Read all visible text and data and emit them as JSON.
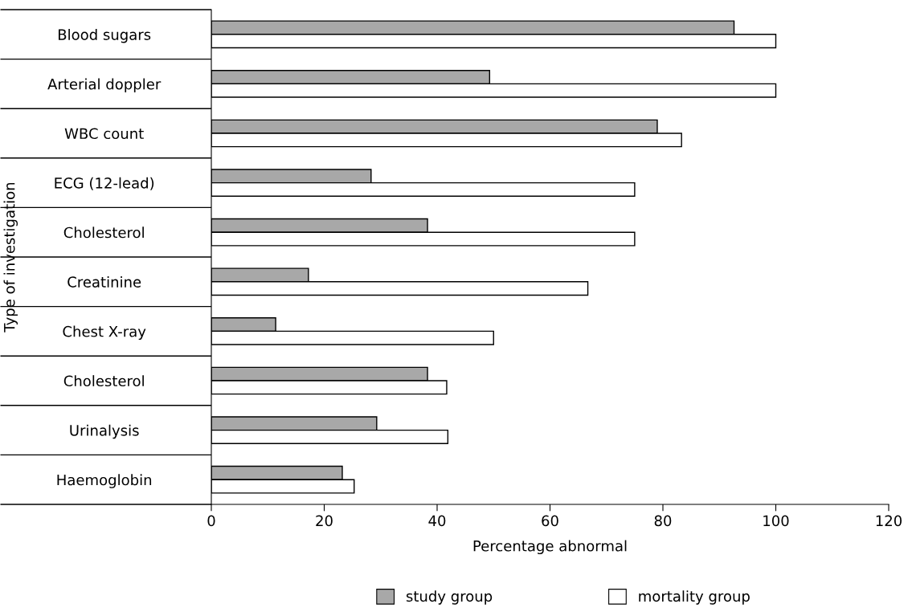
{
  "chart_data": {
    "type": "bar",
    "orientation": "horizontal",
    "xlabel": "Percentage abnormal",
    "ylabel": "Type of investigation",
    "categories": [
      "Blood sugars",
      "Arterial doppler",
      "WBC count",
      "ECG (12-lead)",
      "Cholesterol",
      "Creatinine",
      "Chest X-ray",
      "Cholesterol",
      "Urinalysis",
      "Haemoglobin"
    ],
    "series": [
      {
        "name": "study group",
        "color": "#a8a8a8",
        "values": [
          92.6,
          49.3,
          79,
          28.3,
          38.3,
          17.2,
          11.4,
          38.3,
          29.3,
          23.2
        ]
      },
      {
        "name": "mortality group",
        "color": "#ffffff",
        "values": [
          100,
          100,
          83.3,
          75,
          75,
          66.7,
          50,
          41.7,
          41.9,
          25.3
        ]
      }
    ],
    "xlim": [
      0,
      120
    ],
    "xticks": [
      0,
      20,
      40,
      60,
      80,
      100,
      120
    ],
    "grid": false,
    "legend": "bottom"
  }
}
